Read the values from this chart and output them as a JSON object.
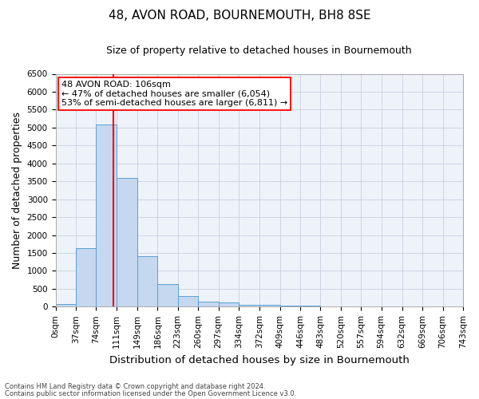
{
  "title": "48, AVON ROAD, BOURNEMOUTH, BH8 8SE",
  "subtitle": "Size of property relative to detached houses in Bournemouth",
  "xlabel": "Distribution of detached houses by size in Bournemouth",
  "ylabel": "Number of detached properties",
  "footer_line1": "Contains HM Land Registry data © Crown copyright and database right 2024.",
  "footer_line2": "Contains public sector information licensed under the Open Government Licence v3.0.",
  "bar_edges": [
    0,
    37,
    74,
    111,
    149,
    186,
    223,
    260,
    297,
    334,
    372,
    409,
    446,
    483,
    520,
    557,
    594,
    632,
    669,
    706,
    743
  ],
  "bar_heights": [
    75,
    1625,
    5075,
    3600,
    1400,
    625,
    300,
    140,
    120,
    50,
    50,
    35,
    20,
    15,
    10,
    8,
    5,
    5,
    5,
    5
  ],
  "bar_color": "#c5d8f0",
  "bar_edgecolor": "#5a9fd4",
  "vline_x": 106,
  "vline_color": "red",
  "annotation_line1": "48 AVON ROAD: 106sqm",
  "annotation_line2": "← 47% of detached houses are smaller (6,054)",
  "annotation_line3": "53% of semi-detached houses are larger (6,811) →",
  "ylim": [
    0,
    6500
  ],
  "xlim": [
    0,
    743
  ],
  "yticks": [
    0,
    500,
    1000,
    1500,
    2000,
    2500,
    3000,
    3500,
    4000,
    4500,
    5000,
    5500,
    6000,
    6500
  ],
  "xtick_labels": [
    "0sqm",
    "37sqm",
    "74sqm",
    "111sqm",
    "149sqm",
    "186sqm",
    "223sqm",
    "260sqm",
    "297sqm",
    "334sqm",
    "372sqm",
    "409sqm",
    "446sqm",
    "483sqm",
    "520sqm",
    "557sqm",
    "594sqm",
    "632sqm",
    "669sqm",
    "706sqm",
    "743sqm"
  ],
  "xtick_positions": [
    0,
    37,
    74,
    111,
    149,
    186,
    223,
    260,
    297,
    334,
    372,
    409,
    446,
    483,
    520,
    557,
    594,
    632,
    669,
    706,
    743
  ],
  "bg_color": "#ffffff",
  "plot_bg_color": "#eef3fa",
  "grid_color": "#c8d0de",
  "title_fontsize": 11,
  "subtitle_fontsize": 9,
  "axis_label_fontsize": 9,
  "tick_fontsize": 7.5,
  "annotation_fontsize": 8
}
